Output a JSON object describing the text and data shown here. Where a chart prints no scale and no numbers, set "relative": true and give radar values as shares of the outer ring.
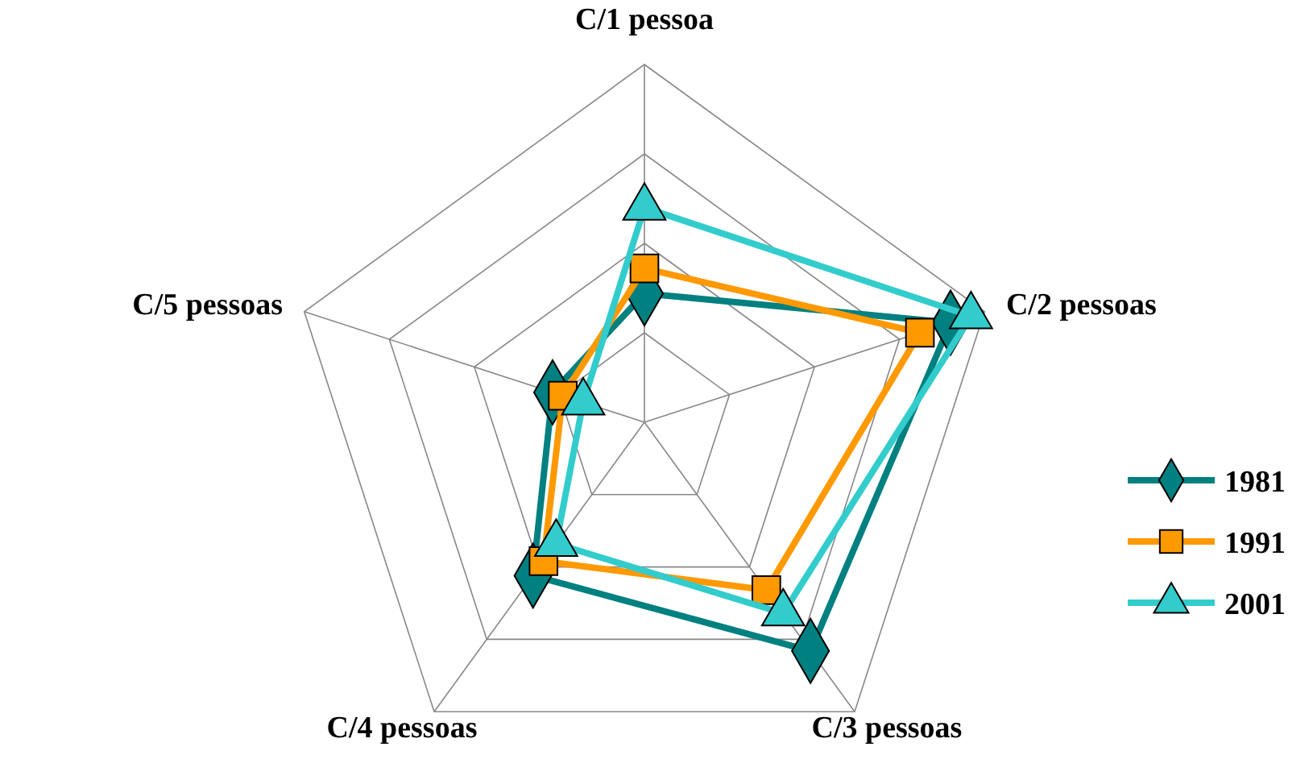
{
  "chart_data": {
    "type": "radar",
    "relative": true,
    "grid": true,
    "legend": "right",
    "categories": [
      "C/1 pessoa",
      "C/2 pessoas",
      "C/3 pessoas",
      "C/4 pessoas",
      "C/5 pessoas"
    ],
    "series": [
      {
        "name": "1981",
        "color": "#008080",
        "marker": "diamond",
        "values": [
          0.36,
          0.9,
          0.79,
          0.53,
          0.27
        ]
      },
      {
        "name": "1991",
        "color": "#ff9900",
        "marker": "square",
        "values": [
          0.43,
          0.81,
          0.58,
          0.48,
          0.24
        ]
      },
      {
        "name": "2001",
        "color": "#33cccc",
        "marker": "triangle",
        "values": [
          0.6,
          0.96,
          0.66,
          0.42,
          0.18
        ]
      }
    ]
  }
}
